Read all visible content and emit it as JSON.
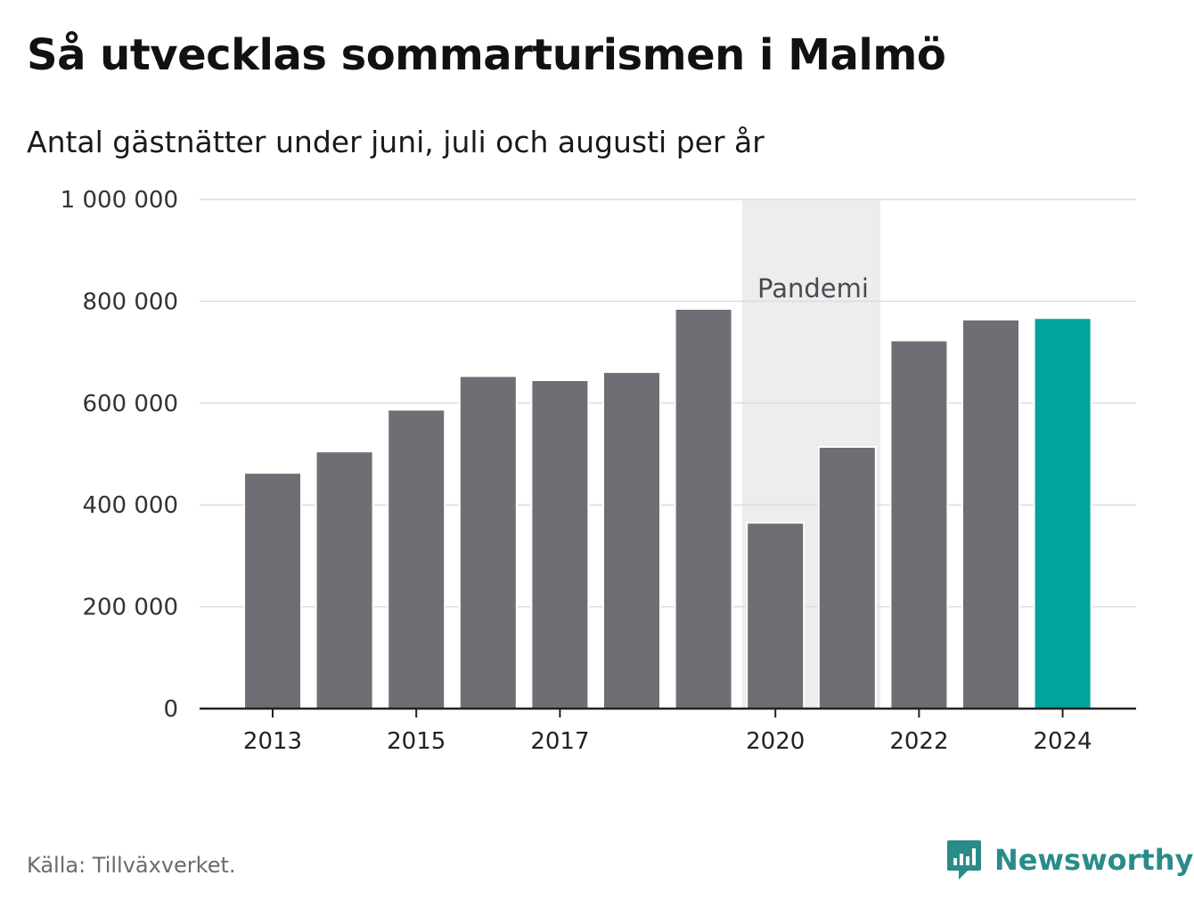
{
  "title": "Så utvecklas sommarturismen i Malmö",
  "subtitle": "Antal gästnätter under juni, juli och augusti per år",
  "source": "Källa: Tillväxverket.",
  "brand": {
    "name": "Newsworthy",
    "icon": "newsworthy-logo-icon",
    "color": "#2a8c89"
  },
  "colors": {
    "bar": "#6f6e74",
    "highlight": "#00a49c",
    "band": "#ededed",
    "grid": "#dddddd",
    "axis": "#222222"
  },
  "chart_data": {
    "type": "bar",
    "title": "Så utvecklas sommarturismen i Malmö",
    "subtitle": "Antal gästnätter under juni, juli och augusti per år",
    "categories": [
      "2013",
      "2014",
      "2015",
      "2016",
      "2017",
      "2018",
      "2019",
      "2020",
      "2021",
      "2022",
      "2023",
      "2024"
    ],
    "values": [
      463000,
      505000,
      587000,
      653000,
      645000,
      661000,
      785000,
      365000,
      514000,
      723000,
      764000,
      767000
    ],
    "highlight_category": "2024",
    "x_tick_labels": [
      "2013",
      "2015",
      "2017",
      "2020",
      "2022",
      "2024"
    ],
    "y_tick_values": [
      0,
      200000,
      400000,
      600000,
      800000,
      1000000
    ],
    "y_tick_labels": [
      "0",
      "200 000",
      "400 000",
      "600 000",
      "800 000",
      "1 000 000"
    ],
    "ylim": [
      0,
      1000000
    ],
    "grid": true,
    "annotation_band": {
      "label": "Pandemi",
      "from": "2020",
      "to": "2021"
    }
  }
}
